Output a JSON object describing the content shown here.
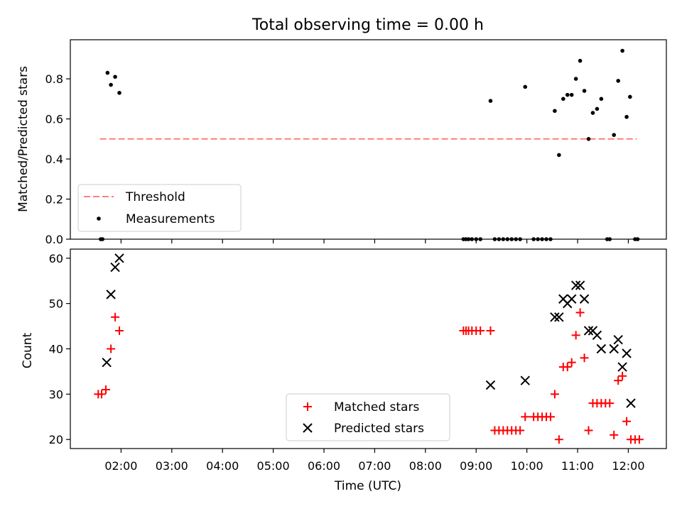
{
  "figure": {
    "title": "Total observing time = 0.00 h"
  },
  "chart_data": [
    {
      "type": "scatter",
      "panel": "top",
      "ylabel": "Matched/Predicted stars",
      "xlabel": "",
      "ylim": [
        0.0,
        0.995
      ],
      "yticks": [
        0.0,
        0.2,
        0.4,
        0.6,
        0.8
      ],
      "ytick_labels": [
        "0.0",
        "0.2",
        "0.4",
        "0.6",
        "0.8"
      ],
      "legend_position": "lower-left",
      "threshold": {
        "name": "Threshold",
        "value": 0.5,
        "x_range": [
          "01:35",
          "12:10"
        ],
        "color": "#ff7f7f",
        "style": "dashed"
      },
      "series": [
        {
          "name": "Measurements",
          "color": "#000000",
          "marker": "dot",
          "points": [
            [
              "01:36",
              0.0
            ],
            [
              "01:38",
              0.0
            ],
            [
              "01:44",
              0.83
            ],
            [
              "01:48",
              0.77
            ],
            [
              "01:53",
              0.81
            ],
            [
              "01:58",
              0.73
            ],
            [
              "08:45",
              0.0
            ],
            [
              "08:48",
              0.0
            ],
            [
              "08:51",
              0.0
            ],
            [
              "08:55",
              0.0
            ],
            [
              "09:00",
              0.0
            ],
            [
              "09:05",
              0.0
            ],
            [
              "09:17",
              0.69
            ],
            [
              "09:22",
              0.0
            ],
            [
              "09:27",
              0.0
            ],
            [
              "09:32",
              0.0
            ],
            [
              "09:37",
              0.0
            ],
            [
              "09:42",
              0.0
            ],
            [
              "09:47",
              0.0
            ],
            [
              "09:52",
              0.0
            ],
            [
              "09:58",
              0.76
            ],
            [
              "10:08",
              0.0
            ],
            [
              "10:13",
              0.0
            ],
            [
              "10:18",
              0.0
            ],
            [
              "10:23",
              0.0
            ],
            [
              "10:28",
              0.0
            ],
            [
              "10:33",
              0.64
            ],
            [
              "10:38",
              0.42
            ],
            [
              "10:43",
              0.7
            ],
            [
              "10:48",
              0.72
            ],
            [
              "10:53",
              0.72
            ],
            [
              "10:58",
              0.8
            ],
            [
              "11:03",
              0.89
            ],
            [
              "11:08",
              0.74
            ],
            [
              "11:13",
              0.5
            ],
            [
              "11:18",
              0.63
            ],
            [
              "11:23",
              0.65
            ],
            [
              "11:28",
              0.7
            ],
            [
              "11:35",
              0.0
            ],
            [
              "11:38",
              0.0
            ],
            [
              "11:43",
              0.52
            ],
            [
              "11:48",
              0.79
            ],
            [
              "11:53",
              0.94
            ],
            [
              "11:58",
              0.61
            ],
            [
              "12:02",
              0.71
            ],
            [
              "12:08",
              0.0
            ],
            [
              "12:11",
              0.0
            ]
          ]
        }
      ]
    },
    {
      "type": "scatter",
      "panel": "bottom",
      "xlabel": "Time (UTC)",
      "ylabel": "Count",
      "ylim": [
        18,
        62
      ],
      "yticks": [
        20,
        30,
        40,
        50,
        60
      ],
      "ytick_labels": [
        "20",
        "30",
        "40",
        "50",
        "60"
      ],
      "xlim": [
        "01:00",
        "12:45"
      ],
      "xticks": [
        "02:00",
        "03:00",
        "04:00",
        "05:00",
        "06:00",
        "07:00",
        "08:00",
        "09:00",
        "10:00",
        "11:00",
        "12:00"
      ],
      "xtick_labels": [
        "02:00",
        "03:00",
        "04:00",
        "05:00",
        "06:00",
        "07:00",
        "08:00",
        "09:00",
        "10:00",
        "11:00",
        "12:00"
      ],
      "legend_position": "lower-center",
      "series": [
        {
          "name": "Matched stars",
          "color": "#ff0000",
          "marker": "plus",
          "points": [
            [
              "01:33",
              30
            ],
            [
              "01:37",
              30
            ],
            [
              "01:42",
              31
            ],
            [
              "01:48",
              40
            ],
            [
              "01:53",
              47
            ],
            [
              "01:58",
              44
            ],
            [
              "08:45",
              44
            ],
            [
              "08:48",
              44
            ],
            [
              "08:51",
              44
            ],
            [
              "08:55",
              44
            ],
            [
              "09:00",
              44
            ],
            [
              "09:05",
              44
            ],
            [
              "09:17",
              44
            ],
            [
              "09:22",
              22
            ],
            [
              "09:27",
              22
            ],
            [
              "09:32",
              22
            ],
            [
              "09:37",
              22
            ],
            [
              "09:42",
              22
            ],
            [
              "09:47",
              22
            ],
            [
              "09:52",
              22
            ],
            [
              "09:58",
              25
            ],
            [
              "10:08",
              25
            ],
            [
              "10:13",
              25
            ],
            [
              "10:18",
              25
            ],
            [
              "10:23",
              25
            ],
            [
              "10:28",
              25
            ],
            [
              "10:33",
              30
            ],
            [
              "10:38",
              20
            ],
            [
              "10:43",
              36
            ],
            [
              "10:48",
              36
            ],
            [
              "10:53",
              37
            ],
            [
              "10:58",
              43
            ],
            [
              "11:03",
              48
            ],
            [
              "11:08",
              38
            ],
            [
              "11:13",
              22
            ],
            [
              "11:18",
              28
            ],
            [
              "11:23",
              28
            ],
            [
              "11:28",
              28
            ],
            [
              "11:33",
              28
            ],
            [
              "11:38",
              28
            ],
            [
              "11:43",
              21
            ],
            [
              "11:48",
              33
            ],
            [
              "11:53",
              34
            ],
            [
              "11:58",
              24
            ],
            [
              "12:03",
              20
            ],
            [
              "12:08",
              20
            ],
            [
              "12:13",
              20
            ]
          ]
        },
        {
          "name": "Predicted stars",
          "color": "#000000",
          "marker": "x",
          "points": [
            [
              "01:43",
              37
            ],
            [
              "01:48",
              52
            ],
            [
              "01:53",
              58
            ],
            [
              "01:58",
              60
            ],
            [
              "09:17",
              32
            ],
            [
              "09:58",
              33
            ],
            [
              "10:33",
              47
            ],
            [
              "10:38",
              47
            ],
            [
              "10:43",
              51
            ],
            [
              "10:48",
              50
            ],
            [
              "10:53",
              51
            ],
            [
              "10:58",
              54
            ],
            [
              "11:03",
              54
            ],
            [
              "11:08",
              51
            ],
            [
              "11:13",
              44
            ],
            [
              "11:18",
              44
            ],
            [
              "11:23",
              43
            ],
            [
              "11:28",
              40
            ],
            [
              "11:43",
              40
            ],
            [
              "11:48",
              42
            ],
            [
              "11:53",
              36
            ],
            [
              "11:58",
              39
            ],
            [
              "12:03",
              28
            ]
          ]
        }
      ]
    }
  ]
}
